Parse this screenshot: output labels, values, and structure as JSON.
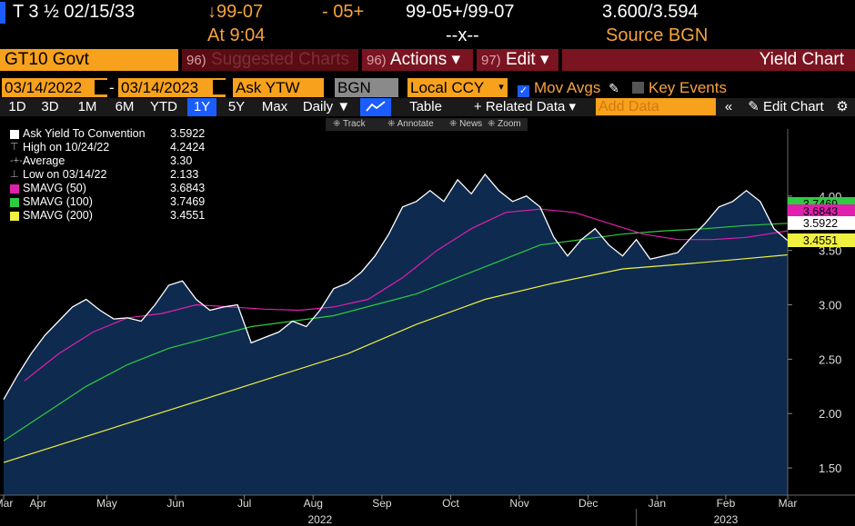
{
  "quote": {
    "security_label": "T 3 ½  02/15/33",
    "bid_price": "↓99-07",
    "change": "- 05+",
    "bid_ask": "99-05+/99-07",
    "yields": "3.600/3.594",
    "time_label": "At 9:04",
    "size_placeholder": "--x--",
    "source": "Source BGN"
  },
  "function_bar": {
    "ticker": "GT10 Govt",
    "suggested_key": "96)",
    "suggested_label": "Suggested Charts",
    "actions_key": "96)",
    "actions_label": "Actions ▾",
    "edit_key": "97)",
    "edit_label": "Edit ▾",
    "title": "Yield Chart"
  },
  "params": {
    "start_date": "03/14/2022",
    "separator": "-",
    "end_date": "03/14/2023",
    "field": "Ask YTW",
    "source": "BGN",
    "currency": "Local CCY",
    "mov_avgs": "Mov Avgs",
    "key_events": "Key Events"
  },
  "period_bar": {
    "periods": [
      "1D",
      "3D",
      "1M",
      "6M",
      "YTD",
      "1Y",
      "5Y",
      "Max"
    ],
    "selected": "1Y",
    "frequency": "Daily ▼",
    "table": "Table",
    "related": "+ Related Data ▾",
    "add_data_placeholder": "Add Data",
    "edit_chart": "Edit Chart"
  },
  "mini_toolbar": {
    "track": "Track",
    "annotate": "Annotate",
    "news": "News",
    "zoom": "Zoom"
  },
  "legend": {
    "rows": [
      {
        "name": "Ask Yield To Convention",
        "value": "3.5922"
      },
      {
        "name": "High on 10/24/22",
        "value": "4.2424"
      },
      {
        "name": "Average",
        "value": "3.30"
      },
      {
        "name": "Low on 03/14/22",
        "value": "2.133"
      },
      {
        "name": "SMAVG (50)",
        "value": "3.6843"
      },
      {
        "name": "SMAVG (100)",
        "value": "3.7469"
      },
      {
        "name": "SMAVG (200)",
        "value": "3.4551"
      }
    ]
  },
  "colors": {
    "background": "#000000",
    "area_fill": "#0e2a4f",
    "price_line": "#ffffff",
    "sma50": "#e01fae",
    "sma100": "#2ecc40",
    "sma200": "#f0f040",
    "accent_orange": "#f7a11c",
    "accent_red": "#7a1420",
    "accent_blue": "#1b5cff"
  },
  "chart_data": {
    "type": "area",
    "ylim": [
      1.25,
      4.55
    ],
    "yticks": [
      1.5,
      2.0,
      2.5,
      3.0,
      3.5,
      4.0
    ],
    "ytick_labels": [
      "1.50",
      "2.00",
      "2.50",
      "3.00",
      "3.50",
      "4.00"
    ],
    "xticks": [
      {
        "label": "Mar",
        "t": 0.0
      },
      {
        "label": "Apr",
        "t": 0.5
      },
      {
        "label": "May",
        "t": 1.5
      },
      {
        "label": "Jun",
        "t": 2.5
      },
      {
        "label": "Jul",
        "t": 3.5
      },
      {
        "label": "Aug",
        "t": 4.5
      },
      {
        "label": "Sep",
        "t": 5.5
      },
      {
        "label": "Oct",
        "t": 6.5
      },
      {
        "label": "Nov",
        "t": 7.5
      },
      {
        "label": "Dec",
        "t": 8.5
      },
      {
        "label": "Jan",
        "t": 9.5
      },
      {
        "label": "Feb",
        "t": 10.5
      },
      {
        "label": "Mar",
        "t": 11.4
      }
    ],
    "year_labels": [
      {
        "label": "2022",
        "t": 4.6
      },
      {
        "label": "2023",
        "t": 10.5
      }
    ],
    "series": [
      {
        "name": "Ask Yield To Convention",
        "x": [
          0.0,
          0.2,
          0.4,
          0.6,
          0.8,
          1.0,
          1.2,
          1.4,
          1.6,
          1.8,
          2.0,
          2.2,
          2.4,
          2.6,
          2.8,
          3.0,
          3.2,
          3.4,
          3.6,
          3.8,
          4.0,
          4.2,
          4.4,
          4.6,
          4.8,
          5.0,
          5.2,
          5.4,
          5.6,
          5.8,
          6.0,
          6.2,
          6.4,
          6.6,
          6.8,
          7.0,
          7.2,
          7.4,
          7.6,
          7.8,
          8.0,
          8.2,
          8.4,
          8.6,
          8.8,
          9.0,
          9.2,
          9.4,
          9.6,
          9.8,
          10.0,
          10.2,
          10.4,
          10.6,
          10.8,
          11.0,
          11.2,
          11.4
        ],
        "values": [
          2.13,
          2.35,
          2.55,
          2.72,
          2.85,
          2.98,
          3.05,
          2.95,
          2.87,
          2.88,
          2.85,
          3.0,
          3.18,
          3.22,
          3.05,
          2.95,
          2.98,
          3.0,
          2.65,
          2.7,
          2.75,
          2.85,
          2.8,
          2.95,
          3.15,
          3.2,
          3.3,
          3.45,
          3.65,
          3.9,
          3.95,
          4.05,
          3.95,
          4.15,
          4.02,
          4.2,
          4.05,
          3.95,
          4.0,
          3.9,
          3.62,
          3.45,
          3.6,
          3.7,
          3.55,
          3.45,
          3.6,
          3.42,
          3.45,
          3.48,
          3.62,
          3.75,
          3.9,
          3.95,
          4.05,
          3.95,
          3.7,
          3.59
        ]
      },
      {
        "name": "SMAVG (50)",
        "x": [
          0.3,
          0.8,
          1.3,
          1.8,
          2.3,
          2.8,
          3.3,
          3.8,
          4.3,
          4.8,
          5.3,
          5.8,
          6.3,
          6.8,
          7.3,
          7.8,
          8.3,
          8.8,
          9.3,
          9.8,
          10.3,
          10.8,
          11.4
        ],
        "values": [
          2.3,
          2.55,
          2.75,
          2.88,
          2.92,
          3.0,
          2.98,
          2.96,
          2.95,
          2.98,
          3.05,
          3.25,
          3.5,
          3.7,
          3.85,
          3.88,
          3.85,
          3.75,
          3.65,
          3.6,
          3.6,
          3.62,
          3.68
        ]
      },
      {
        "name": "SMAVG (100)",
        "x": [
          0.0,
          0.6,
          1.2,
          1.8,
          2.4,
          3.0,
          3.6,
          4.2,
          4.8,
          5.4,
          6.0,
          6.6,
          7.2,
          7.8,
          8.4,
          9.0,
          9.6,
          10.2,
          10.8,
          11.4
        ],
        "values": [
          1.75,
          2.0,
          2.25,
          2.45,
          2.6,
          2.7,
          2.8,
          2.85,
          2.9,
          3.0,
          3.1,
          3.25,
          3.4,
          3.55,
          3.6,
          3.65,
          3.68,
          3.7,
          3.73,
          3.75
        ]
      },
      {
        "name": "SMAVG (200)",
        "x": [
          0.0,
          1.0,
          2.0,
          3.0,
          4.0,
          5.0,
          6.0,
          7.0,
          8.0,
          9.0,
          10.0,
          10.7,
          11.4
        ],
        "values": [
          1.55,
          1.75,
          1.95,
          2.15,
          2.35,
          2.55,
          2.82,
          3.05,
          3.2,
          3.33,
          3.38,
          3.42,
          3.46
        ]
      }
    ],
    "last_value_labels": [
      {
        "series": "SMAVG (100)",
        "value": 3.7469,
        "text": "3.7469"
      },
      {
        "series": "SMAVG (50)",
        "value": 3.6843,
        "text": "3.6843"
      },
      {
        "series": "Ask Yield To Convention",
        "value": 3.5922,
        "text": "3.5922"
      },
      {
        "series": "SMAVG (200)",
        "value": 3.4551,
        "text": "3.4551"
      }
    ],
    "grid": false,
    "legend_position": "top-left"
  }
}
